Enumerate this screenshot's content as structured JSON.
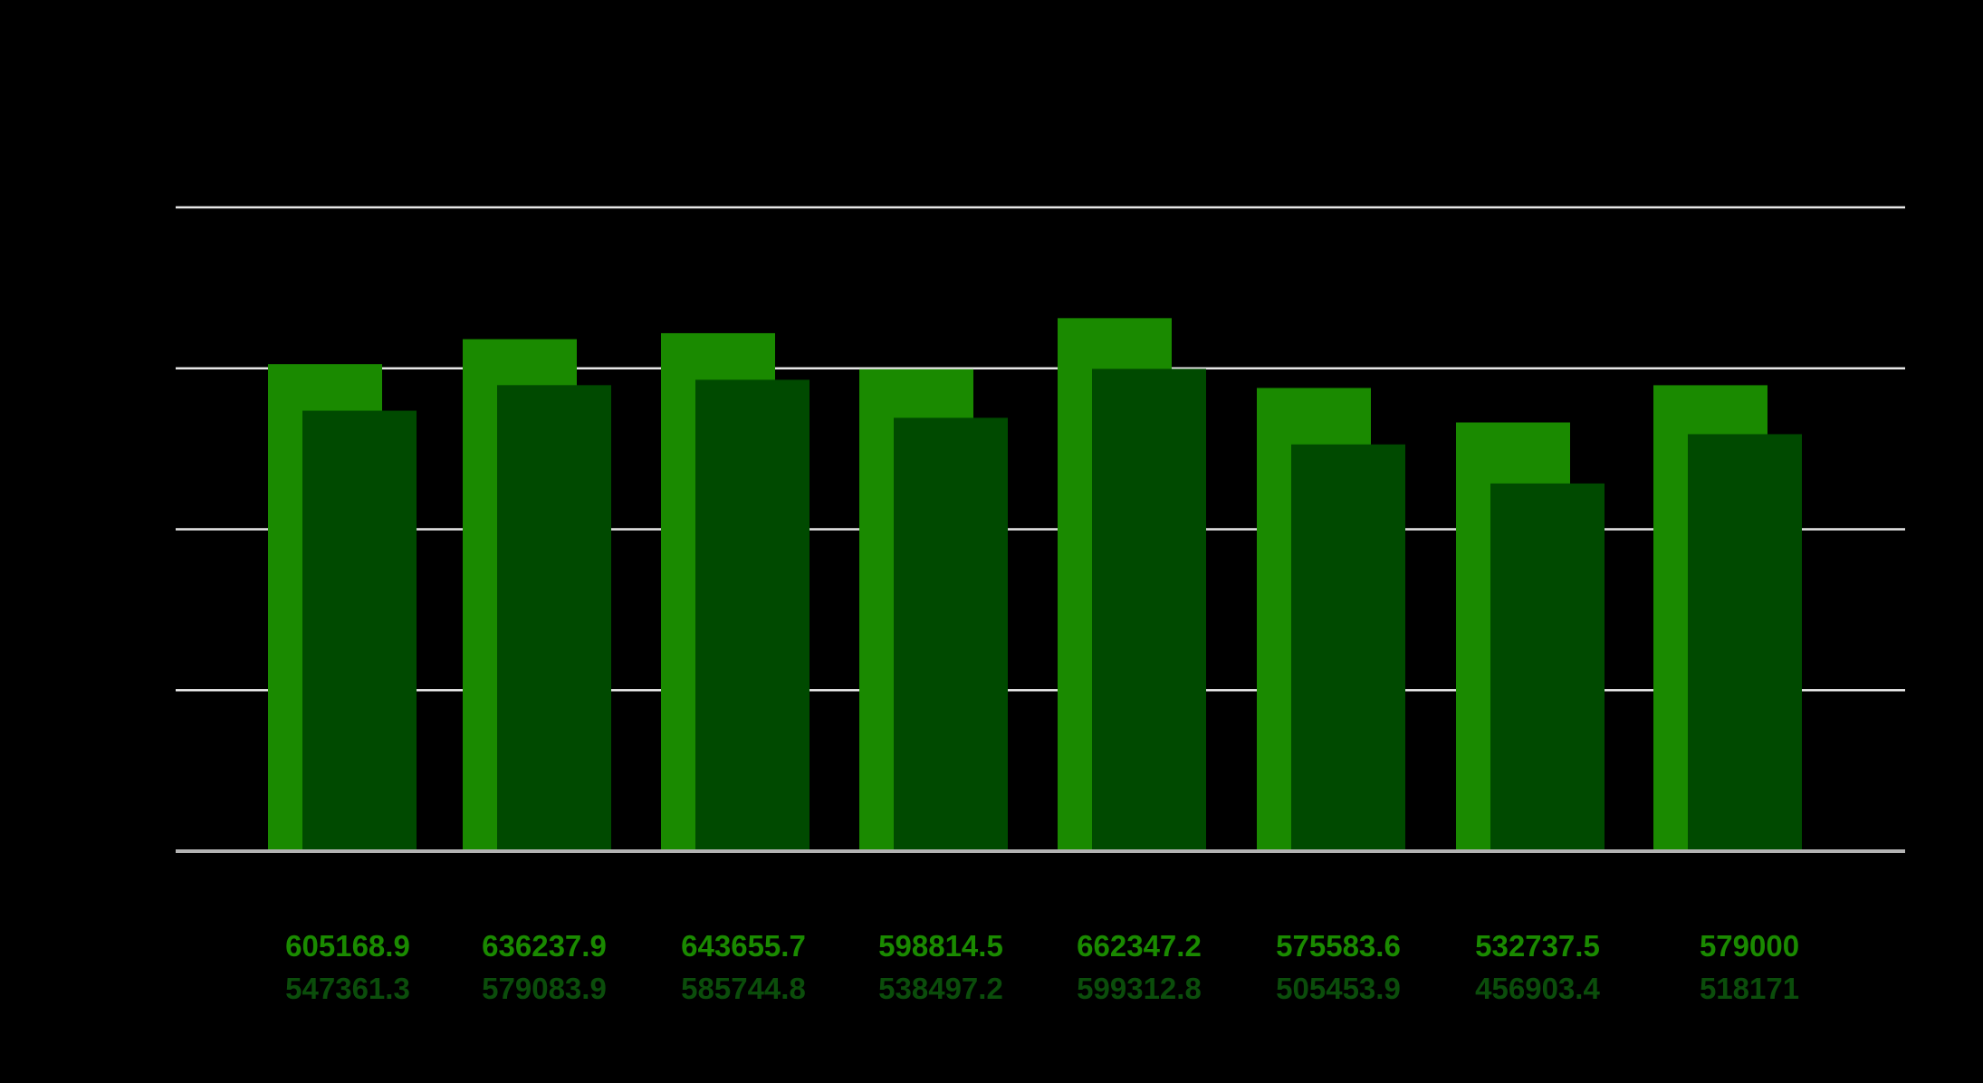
{
  "chart_data": {
    "type": "bar",
    "categories": [
      "",
      "",
      "",
      "",
      "",
      "",
      "",
      ""
    ],
    "series": [
      {
        "values": [
          605168.9,
          636237.9,
          643655.7,
          598814.5,
          662347.2,
          575583.6,
          532737.5,
          579000
        ]
      },
      {
        "values": [
          547361.3,
          579083.9,
          585744.8,
          538497.2,
          599312.8,
          505453.9,
          456903.4,
          518171
        ]
      }
    ],
    "value_labels": [
      [
        "605168.9",
        "636237.9",
        "643655.7",
        "598814.5",
        "662347.2",
        "575583.6",
        "532737.5",
        "579000"
      ],
      [
        "547361.3",
        "579083.9",
        "585744.8",
        "538497.2",
        "599312.8",
        "505453.9",
        "456903.4",
        "518171"
      ]
    ],
    "title": "",
    "xlabel": "",
    "ylabel": "",
    "ylim": [
      0,
      800000
    ],
    "grid": true,
    "legend": "none",
    "colors": {
      "background": "#000000",
      "series_1": "#1a8a00",
      "series_2": "#004a00",
      "grid": "#e6e6e6",
      "baseline": "#b3b3b3",
      "label_1": "#1a8a00",
      "label_2": "#0b4d0b"
    }
  }
}
